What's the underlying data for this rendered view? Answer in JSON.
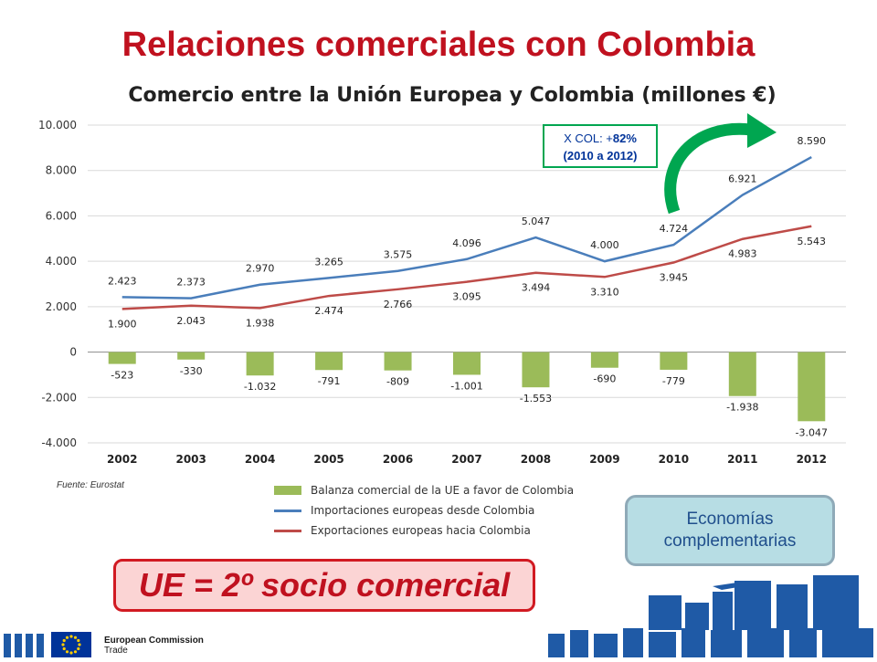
{
  "slide_title": "Relaciones comerciales con Colombia",
  "chart_data": {
    "type": "bar+line",
    "title": "Comercio entre la Unión Europea y Colombia (millones €)",
    "categories": [
      "2002",
      "2003",
      "2004",
      "2005",
      "2006",
      "2007",
      "2008",
      "2009",
      "2010",
      "2011",
      "2012"
    ],
    "ylim": [
      -4000,
      10000
    ],
    "yticks": [
      10000,
      8000,
      6000,
      4000,
      2000,
      0,
      -2000,
      -4000
    ],
    "ytick_labels": [
      "10.000",
      "8.000",
      "6.000",
      "4.000",
      "2.000",
      "0",
      "-2.000",
      "-4.000"
    ],
    "grid": true,
    "legend_position": "bottom",
    "series": [
      {
        "name": "Balanza comercial de la UE a favor de Colombia",
        "kind": "bar",
        "color": "#9bbb59",
        "values": [
          -523,
          -330,
          -1032,
          -791,
          -809,
          -1001,
          -1553,
          -690,
          -779,
          -1938,
          -3047
        ],
        "labels": [
          "-523",
          "-330",
          "-1.032",
          "-791",
          "-809",
          "-1.001",
          "-1.553",
          "-690",
          "-779",
          "-1.938",
          "-3.047"
        ]
      },
      {
        "name": "Importaciones europeas desde Colombia",
        "kind": "line",
        "color": "#4a7ebb",
        "values": [
          2423,
          2373,
          2970,
          3265,
          3575,
          4096,
          5047,
          4000,
          4724,
          6921,
          8590
        ],
        "labels": [
          "2.423",
          "2.373",
          "2.970",
          "3.265",
          "3.575",
          "4.096",
          "5.047",
          "4.000",
          "4.724",
          "6.921",
          "8.590"
        ]
      },
      {
        "name": "Exportaciones europeas hacia Colombia",
        "kind": "line",
        "color": "#be4b48",
        "values": [
          1900,
          2043,
          1938,
          2474,
          2766,
          3095,
          3494,
          3310,
          3945,
          4983,
          5543
        ],
        "labels": [
          "1.900",
          "2.043",
          "1.938",
          "2.474",
          "2.766",
          "3.095",
          "3.494",
          "3.310",
          "3.945",
          "4.983",
          "5.543"
        ]
      }
    ],
    "annotation": {
      "line1_prefix": "X COL: +",
      "line1_value": "82%",
      "line2": "(2010 a 2012)"
    }
  },
  "source": "Fuente: Eurostat",
  "callout_economias": {
    "line1": "Economías",
    "line2": "complementarias"
  },
  "callout_socio": "UE = 2º socio comercial",
  "footer": {
    "line1": "European Commission",
    "line2": "Trade"
  },
  "colors": {
    "title_red": "#c0111f",
    "arrow_green": "#00a650",
    "footer_blue": "#1f5aa6"
  }
}
